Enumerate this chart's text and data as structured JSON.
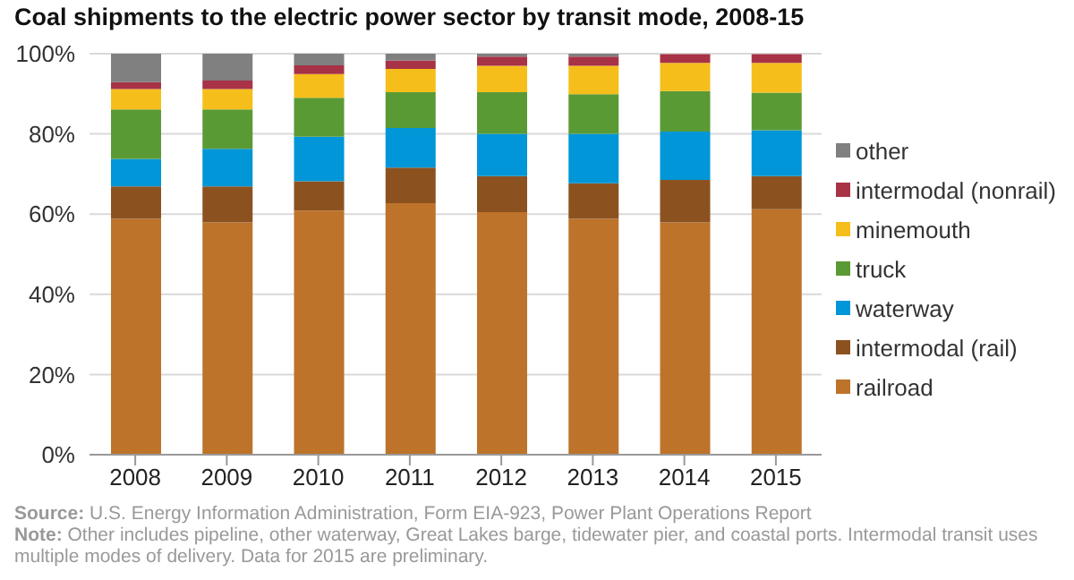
{
  "chart_data": {
    "type": "bar",
    "title": "Coal shipments to the electric power sector by transit mode, 2008-15",
    "categories": [
      "2008",
      "2009",
      "2010",
      "2011",
      "2012",
      "2013",
      "2014",
      "2015"
    ],
    "stacked": true,
    "series": [
      {
        "name": "railroad",
        "color": "#bd732a",
        "values": [
          58.8,
          57.9,
          60.9,
          62.7,
          60.5,
          58.8,
          57.9,
          61.2
        ]
      },
      {
        "name": "intermodal (rail)",
        "color": "#8b5220",
        "values": [
          8.1,
          9.0,
          7.3,
          8.9,
          9.0,
          8.9,
          10.6,
          8.3
        ]
      },
      {
        "name": "waterway",
        "color": "#0096d7",
        "values": [
          6.9,
          9.4,
          11.1,
          9.9,
          10.5,
          12.3,
          12.1,
          11.4
        ]
      },
      {
        "name": "truck",
        "color": "#5a9a35",
        "values": [
          12.3,
          9.8,
          9.7,
          8.9,
          10.4,
          9.9,
          10.1,
          9.4
        ]
      },
      {
        "name": "minemouth",
        "color": "#f5be1a",
        "values": [
          5.1,
          5.1,
          5.9,
          5.8,
          6.6,
          7.1,
          7.0,
          7.4
        ]
      },
      {
        "name": "intermodal (nonrail)",
        "color": "#a83246",
        "values": [
          1.7,
          2.1,
          2.2,
          2.1,
          2.3,
          2.3,
          2.2,
          2.2
        ]
      },
      {
        "name": "other",
        "color": "#808080",
        "values": [
          7.1,
          6.7,
          2.9,
          1.7,
          0.7,
          0.7,
          null,
          null
        ]
      }
    ],
    "ylim": [
      0,
      100
    ],
    "yticks": [
      {
        "value": 0,
        "label": "0%"
      },
      {
        "value": 20,
        "label": "20%"
      },
      {
        "value": 40,
        "label": "40%"
      },
      {
        "value": 60,
        "label": "60%"
      },
      {
        "value": 80,
        "label": "80%"
      },
      {
        "value": 100,
        "label": "100%"
      }
    ],
    "grid": "y",
    "legend": "right",
    "annotations": [
      "Source: U.S. Energy Information Administration, Form EIA-923, Power Plant Operations Report",
      "Note: Other includes pipeline, other waterway, Great Lakes barge, tidewater pier, and coastal ports. Intermodal transit uses multiple modes of delivery. Data for 2015 are preliminary."
    ]
  }
}
